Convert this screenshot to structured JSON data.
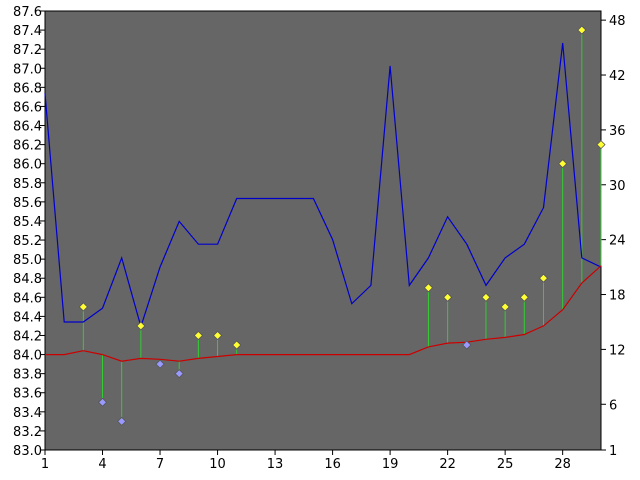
{
  "colors": {
    "background": "#ffffff",
    "plot_area": "#666666",
    "line_main": "#0000cc",
    "line_base": "#cc0000",
    "stem": "#33cc33",
    "marker_up": "#ffff33",
    "marker_down": "#9999ff",
    "marker_edge": "#555555",
    "axis": "#000000"
  },
  "chart_data": {
    "type": "line",
    "title": "",
    "xlabel": "",
    "ylabel": "",
    "y2label": "",
    "grid": false,
    "legend": "none",
    "x": [
      1,
      2,
      3,
      4,
      5,
      6,
      7,
      8,
      9,
      10,
      11,
      12,
      13,
      14,
      15,
      16,
      17,
      18,
      19,
      20,
      21,
      22,
      23,
      24,
      25,
      26,
      27,
      28,
      29,
      30
    ],
    "xlim": [
      1,
      30
    ],
    "x_ticks": [
      "1",
      "4",
      "7",
      "10",
      "13",
      "16",
      "19",
      "22",
      "25",
      "28"
    ],
    "ylim": [
      83.0,
      87.6
    ],
    "y_ticks": [
      "83.0",
      "83.2",
      "83.4",
      "83.6",
      "83.8",
      "84.0",
      "84.2",
      "84.4",
      "84.6",
      "84.8",
      "85.0",
      "85.2",
      "85.4",
      "85.6",
      "85.8",
      "86.0",
      "86.2",
      "86.4",
      "86.6",
      "86.8",
      "87.0",
      "87.2",
      "87.4",
      "87.6"
    ],
    "y2lim": [
      1,
      49
    ],
    "y2_ticks": [
      "1",
      "6",
      "12",
      "18",
      "24",
      "30",
      "36",
      "42",
      "48"
    ],
    "series": [
      {
        "axis": "right",
        "style": "line",
        "values": [
          40.0,
          15.0,
          15.0,
          16.5,
          22.0,
          14.5,
          21.0,
          26.0,
          23.5,
          23.5,
          28.5,
          28.5,
          28.5,
          28.5,
          28.5,
          24.0,
          17.0,
          19.0,
          43.0,
          19.0,
          22.0,
          26.5,
          23.5,
          19.0,
          22.0,
          23.5,
          27.5,
          45.5,
          22.0,
          21.0
        ]
      },
      {
        "axis": "left",
        "style": "line",
        "values": [
          84.0,
          84.0,
          84.04,
          84.0,
          83.93,
          83.96,
          83.95,
          83.93,
          83.96,
          83.98,
          84.0,
          84.0,
          84.0,
          84.0,
          84.0,
          84.0,
          84.0,
          84.0,
          84.0,
          84.0,
          84.08,
          84.12,
          84.13,
          84.16,
          84.18,
          84.21,
          84.3,
          84.47,
          84.75,
          84.93
        ]
      },
      {
        "axis": "left",
        "style": "stem",
        "points": [
          {
            "x": 3,
            "y": 84.5,
            "base": 84.04
          },
          {
            "x": 4,
            "y": 83.5,
            "base": 84.0
          },
          {
            "x": 5,
            "y": 83.3,
            "base": 83.93
          },
          {
            "x": 6,
            "y": 84.3,
            "base": 83.96
          },
          {
            "x": 7,
            "y": 83.9,
            "base": 83.95
          },
          {
            "x": 8,
            "y": 83.8,
            "base": 83.93
          },
          {
            "x": 9,
            "y": 84.2,
            "base": 83.96
          },
          {
            "x": 10,
            "y": 84.2,
            "base": 83.98
          },
          {
            "x": 11,
            "y": 84.1,
            "base": 84.0
          },
          {
            "x": 21,
            "y": 84.7,
            "base": 84.08
          },
          {
            "x": 22,
            "y": 84.6,
            "base": 84.12
          },
          {
            "x": 23,
            "y": 84.1,
            "base": 84.13
          },
          {
            "x": 24,
            "y": 84.6,
            "base": 84.16
          },
          {
            "x": 25,
            "y": 84.5,
            "base": 84.18
          },
          {
            "x": 26,
            "y": 84.6,
            "base": 84.21
          },
          {
            "x": 27,
            "y": 84.8,
            "base": 84.3
          },
          {
            "x": 28,
            "y": 86.0,
            "base": 84.47
          },
          {
            "x": 29,
            "y": 87.4,
            "base": 84.75
          },
          {
            "x": 30,
            "y": 86.2,
            "base": 84.93
          }
        ]
      }
    ]
  }
}
